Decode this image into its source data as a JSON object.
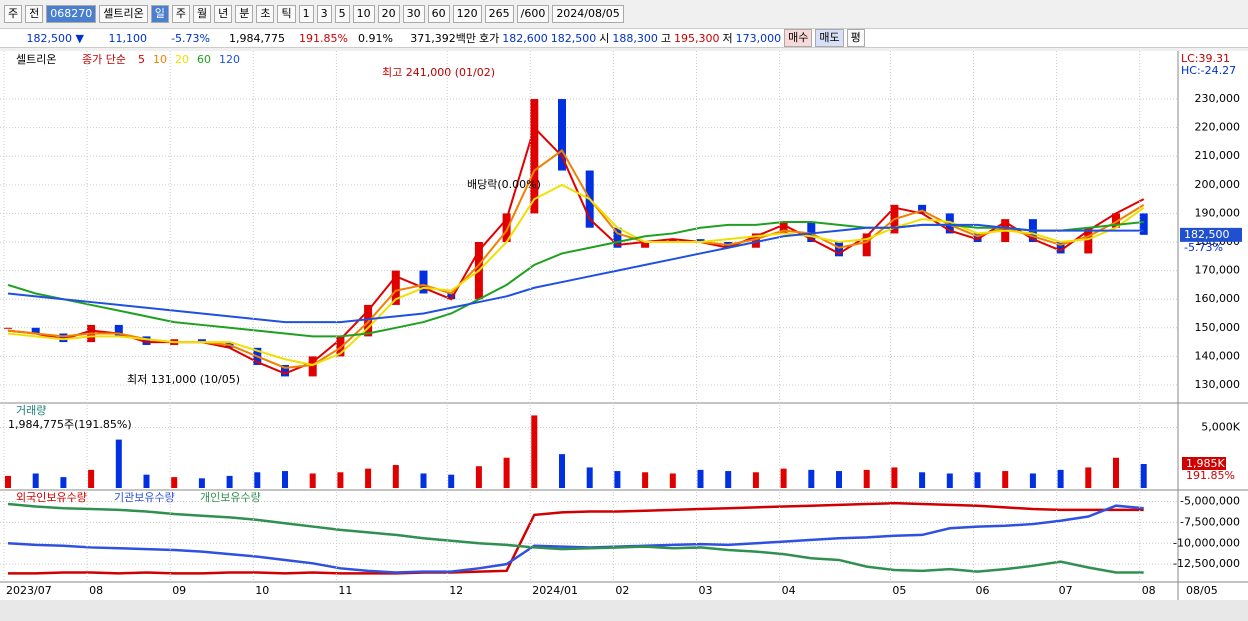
{
  "toolbar": {
    "items": [
      "주",
      "전",
      "068270",
      "셀트리온",
      "일",
      "주",
      "월",
      "년",
      "분",
      "초",
      "틱",
      "1",
      "3",
      "5",
      "10",
      "20",
      "30",
      "60",
      "120",
      "265",
      "/600",
      "2024/08/05"
    ]
  },
  "info_bar": {
    "price": "182,500 ▼",
    "change": "11,100",
    "change_pct": "-5.73%",
    "volume": "1,984,775",
    "volume_pct": "191.85%",
    "turnover": "0.91%",
    "amount": "371,392백만",
    "ask_label": "호가",
    "ask": "182,600",
    "bid": "182,500",
    "open_label": "시",
    "open": "188,300",
    "high_label": "고",
    "high": "195,300",
    "low_label": "저",
    "low": "173,000",
    "buy": "매수",
    "sell": "매도",
    "avg": "평"
  },
  "chart_data": [
    {
      "type": "candlestick",
      "title": "셀트리온",
      "legend_prefix": "종가 단순",
      "close": [
        150000,
        148000,
        145000,
        151000,
        147000,
        144000,
        146000,
        145000,
        143000,
        137000,
        133000,
        140000,
        147000,
        158000,
        170000,
        162000,
        160000,
        180000,
        190000,
        230000,
        205000,
        185000,
        178000,
        180000,
        181000,
        180000,
        178000,
        183000,
        187000,
        180000,
        175000,
        183000,
        193000,
        190000,
        183000,
        180000,
        188000,
        180000,
        176000,
        185000,
        190000,
        182500
      ],
      "series": [
        {
          "name": "5",
          "color": "#e00000",
          "values": [
            149000,
            148000,
            146000,
            149000,
            148000,
            145000,
            145000,
            145000,
            143000,
            138000,
            134000,
            138000,
            146000,
            156000,
            168000,
            164000,
            160000,
            177000,
            188000,
            220000,
            210000,
            188000,
            179000,
            180000,
            181000,
            180000,
            178000,
            182000,
            186000,
            181000,
            176000,
            182000,
            192000,
            190000,
            184000,
            181000,
            187000,
            181000,
            177000,
            184000,
            190000,
            195000
          ]
        },
        {
          "name": "10",
          "color": "#f08000",
          "values": [
            149000,
            148000,
            147000,
            148000,
            148000,
            146000,
            145000,
            145000,
            144000,
            140000,
            136000,
            137000,
            143000,
            152000,
            163000,
            165000,
            162000,
            172000,
            184000,
            205000,
            212000,
            195000,
            183000,
            180000,
            180000,
            180000,
            179000,
            181000,
            184000,
            183000,
            178000,
            180000,
            188000,
            191000,
            186000,
            182000,
            185000,
            182000,
            179000,
            182000,
            187000,
            193000
          ]
        },
        {
          "name": "20",
          "color": "#f0e000",
          "values": [
            148000,
            147000,
            146000,
            147000,
            147000,
            146000,
            145000,
            145000,
            145000,
            142000,
            139000,
            137000,
            141000,
            150000,
            160000,
            164000,
            163000,
            170000,
            180000,
            195000,
            200000,
            195000,
            185000,
            180000,
            180000,
            180000,
            181000,
            182000,
            183000,
            182000,
            180000,
            181000,
            185000,
            188000,
            187000,
            183000,
            184000,
            183000,
            180000,
            181000,
            185000,
            192000
          ]
        },
        {
          "name": "60",
          "color": "#20a020",
          "values": [
            165000,
            162000,
            160000,
            158000,
            156000,
            154000,
            152000,
            151000,
            150000,
            149000,
            148000,
            147000,
            147000,
            148000,
            150000,
            152000,
            155000,
            160000,
            165000,
            172000,
            176000,
            178000,
            180000,
            182000,
            183000,
            185000,
            186000,
            186000,
            187000,
            187000,
            186000,
            185000,
            185000,
            186000,
            186000,
            185000,
            185000,
            184000,
            184000,
            185000,
            186000,
            187000
          ]
        },
        {
          "name": "120",
          "color": "#2050e0",
          "values": [
            162000,
            161000,
            160000,
            159000,
            158000,
            157000,
            156000,
            155000,
            154000,
            153000,
            152000,
            152000,
            152000,
            153000,
            154000,
            155000,
            157000,
            159000,
            161000,
            164000,
            166000,
            168000,
            170000,
            172000,
            174000,
            176000,
            178000,
            180000,
            182000,
            183000,
            184000,
            185000,
            185000,
            186000,
            186000,
            186000,
            185000,
            184000,
            184000,
            184000,
            184000,
            184000
          ]
        }
      ],
      "ylim": [
        123700,
        246800
      ],
      "yticks": [
        {
          "value": 130000,
          "label": "130,000"
        },
        {
          "value": 140000,
          "label": "140,000"
        },
        {
          "value": 150000,
          "label": "150,000"
        },
        {
          "value": 160000,
          "label": "160,000"
        },
        {
          "value": 170000,
          "label": "170,000"
        },
        {
          "value": 180000,
          "label": "180,000"
        },
        {
          "value": 190000,
          "label": "190,000"
        },
        {
          "value": 200000,
          "label": "200,000"
        },
        {
          "value": 210000,
          "label": "210,000"
        },
        {
          "value": 220000,
          "label": "220,000"
        },
        {
          "value": 230000,
          "label": "230,000"
        }
      ],
      "annotations": [
        "최고 241,000 (01/02)",
        "최저 131,000 (10/05)",
        "배당락(0.00%)"
      ],
      "lc": "LC:39.31",
      "hc": "HC:-24.27",
      "last_label": "182,500",
      "last_pct": "-5.73%"
    },
    {
      "type": "bar",
      "title": "거래량",
      "subtitle": "1,984,775주(191.85%)",
      "values": [
        1000,
        1200,
        900,
        1500,
        4000,
        1100,
        900,
        800,
        1000,
        1300,
        1400,
        1200,
        1300,
        1600,
        1900,
        1200,
        1100,
        1800,
        2500,
        6000,
        2800,
        1700,
        1400,
        1300,
        1200,
        1500,
        1400,
        1300,
        1600,
        1500,
        1400,
        1500,
        1700,
        1300,
        1200,
        1300,
        1400,
        1200,
        1500,
        1700,
        2500,
        1985
      ],
      "ylim": [
        0,
        6200
      ],
      "yticks": [
        {
          "value": 5000,
          "label": "5,000K"
        }
      ],
      "last_label": "1,985K",
      "last_pct": "191.85%"
    },
    {
      "type": "line",
      "categories": [
        "2023/07",
        null,
        null,
        "08",
        null,
        null,
        "09",
        null,
        null,
        "10",
        null,
        null,
        "11",
        null,
        null,
        null,
        "12",
        null,
        null,
        "2024/01",
        null,
        null,
        "02",
        null,
        null,
        "03",
        null,
        null,
        "04",
        null,
        null,
        null,
        "05",
        null,
        null,
        "06",
        null,
        null,
        "07",
        null,
        null,
        "08"
      ],
      "end_label": "08/05",
      "series": [
        {
          "name": "외국인보유수량",
          "color": "#d00000",
          "values": [
            -13600000,
            -13600000,
            -13500000,
            -13500000,
            -13600000,
            -13500000,
            -13600000,
            -13600000,
            -13500000,
            -13500000,
            -13600000,
            -13500000,
            -13600000,
            -13600000,
            -13600000,
            -13500000,
            -13500000,
            -13400000,
            -13300000,
            -6600000,
            -6300000,
            -6200000,
            -6200000,
            -6100000,
            -6000000,
            -5900000,
            -5800000,
            -5700000,
            -5600000,
            -5500000,
            -5400000,
            -5300000,
            -5200000,
            -5300000,
            -5400000,
            -5500000,
            -5700000,
            -5900000,
            -6000000,
            -6000000,
            -6000000,
            -6000000
          ]
        },
        {
          "name": "기관보유수량",
          "color": "#3050e0",
          "values": [
            -10000000,
            -10200000,
            -10300000,
            -10500000,
            -10600000,
            -10700000,
            -10800000,
            -11000000,
            -11300000,
            -11600000,
            -12000000,
            -12400000,
            -13000000,
            -13300000,
            -13500000,
            -13400000,
            -13400000,
            -13000000,
            -12500000,
            -10300000,
            -10400000,
            -10500000,
            -10400000,
            -10300000,
            -10200000,
            -10100000,
            -10200000,
            -10000000,
            -9800000,
            -9600000,
            -9400000,
            -9300000,
            -9100000,
            -9000000,
            -8200000,
            -8000000,
            -7900000,
            -7700000,
            -7300000,
            -6800000,
            -5500000,
            -5800000
          ]
        },
        {
          "name": "개인보유수량",
          "color": "#309050",
          "values": [
            -5300000,
            -5600000,
            -5800000,
            -5900000,
            -6000000,
            -6200000,
            -6500000,
            -6700000,
            -6900000,
            -7200000,
            -7600000,
            -8000000,
            -8400000,
            -8700000,
            -9000000,
            -9400000,
            -9700000,
            -10000000,
            -10200000,
            -10500000,
            -10700000,
            -10600000,
            -10500000,
            -10400000,
            -10600000,
            -10500000,
            -10800000,
            -11000000,
            -11300000,
            -11800000,
            -12000000,
            -12800000,
            -13200000,
            -13300000,
            -13100000,
            -13400000,
            -13100000,
            -12700000,
            -12200000,
            -12900000,
            -13500000,
            -13500000
          ]
        }
      ],
      "ylim": [
        -14400000,
        -3860000
      ],
      "yticks": [
        {
          "value": -5000000,
          "label": "-5,000,000"
        },
        {
          "value": -7500000,
          "label": "-7,500,000"
        },
        {
          "value": -10000000,
          "label": "-10,000,000"
        },
        {
          "value": -12500000,
          "label": "-12,500,000"
        }
      ]
    }
  ]
}
